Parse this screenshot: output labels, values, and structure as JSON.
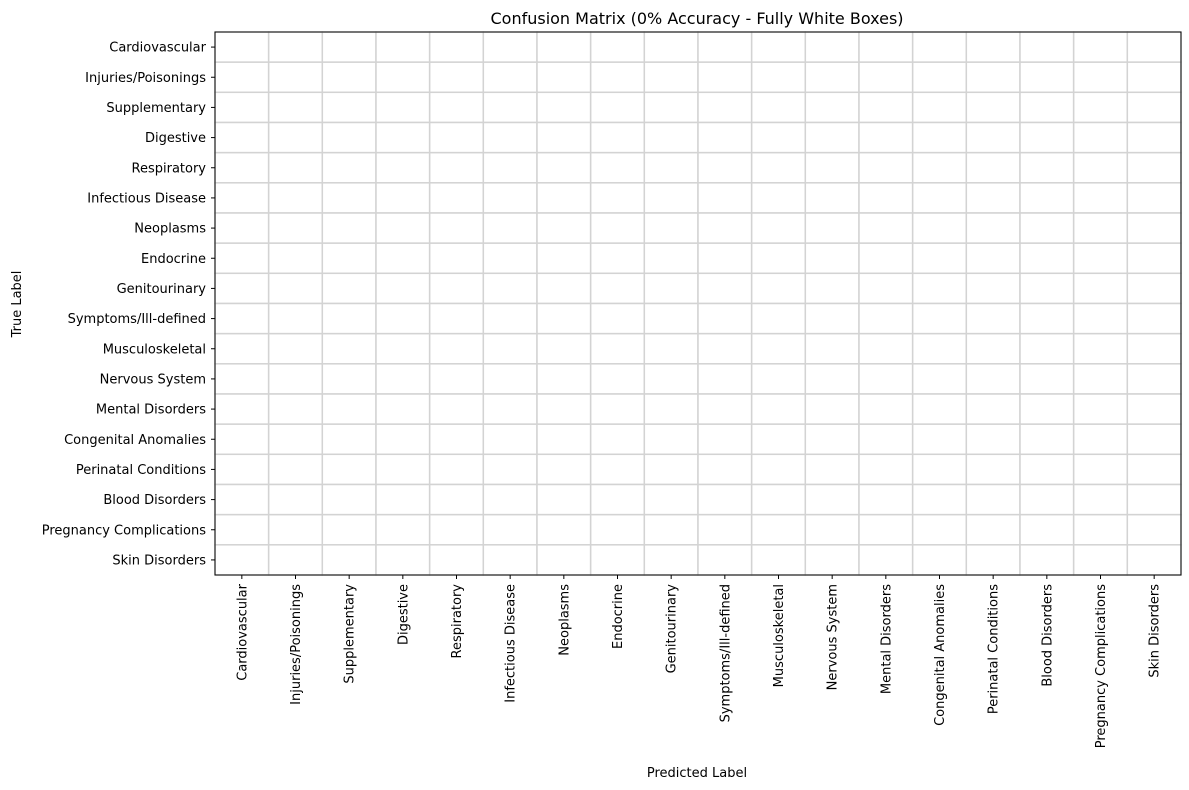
{
  "chart_data": {
    "type": "heatmap",
    "title": "Confusion Matrix (0% Accuracy - Fully White Boxes)",
    "xlabel": "Predicted Label",
    "ylabel": "True Label",
    "x_categories": [
      "Cardiovascular",
      "Injuries/Poisonings",
      "Supplementary",
      "Digestive",
      "Respiratory",
      "Infectious Disease",
      "Neoplasms",
      "Endocrine",
      "Genitourinary",
      "Symptoms/Ill-defined",
      "Musculoskeletal",
      "Nervous System",
      "Mental Disorders",
      "Congenital Anomalies",
      "Perinatal Conditions",
      "Blood Disorders",
      "Pregnancy Complications",
      "Skin Disorders"
    ],
    "y_categories": [
      "Cardiovascular",
      "Injuries/Poisonings",
      "Supplementary",
      "Digestive",
      "Respiratory",
      "Infectious Disease",
      "Neoplasms",
      "Endocrine",
      "Genitourinary",
      "Symptoms/Ill-defined",
      "Musculoskeletal",
      "Nervous System",
      "Mental Disorders",
      "Congenital Anomalies",
      "Perinatal Conditions",
      "Blood Disorders",
      "Pregnancy Complications",
      "Skin Disorders"
    ],
    "values": [
      [
        0,
        0,
        0,
        0,
        0,
        0,
        0,
        0,
        0,
        0,
        0,
        0,
        0,
        0,
        0,
        0,
        0,
        0
      ],
      [
        0,
        0,
        0,
        0,
        0,
        0,
        0,
        0,
        0,
        0,
        0,
        0,
        0,
        0,
        0,
        0,
        0,
        0
      ],
      [
        0,
        0,
        0,
        0,
        0,
        0,
        0,
        0,
        0,
        0,
        0,
        0,
        0,
        0,
        0,
        0,
        0,
        0
      ],
      [
        0,
        0,
        0,
        0,
        0,
        0,
        0,
        0,
        0,
        0,
        0,
        0,
        0,
        0,
        0,
        0,
        0,
        0
      ],
      [
        0,
        0,
        0,
        0,
        0,
        0,
        0,
        0,
        0,
        0,
        0,
        0,
        0,
        0,
        0,
        0,
        0,
        0
      ],
      [
        0,
        0,
        0,
        0,
        0,
        0,
        0,
        0,
        0,
        0,
        0,
        0,
        0,
        0,
        0,
        0,
        0,
        0
      ],
      [
        0,
        0,
        0,
        0,
        0,
        0,
        0,
        0,
        0,
        0,
        0,
        0,
        0,
        0,
        0,
        0,
        0,
        0
      ],
      [
        0,
        0,
        0,
        0,
        0,
        0,
        0,
        0,
        0,
        0,
        0,
        0,
        0,
        0,
        0,
        0,
        0,
        0
      ],
      [
        0,
        0,
        0,
        0,
        0,
        0,
        0,
        0,
        0,
        0,
        0,
        0,
        0,
        0,
        0,
        0,
        0,
        0
      ],
      [
        0,
        0,
        0,
        0,
        0,
        0,
        0,
        0,
        0,
        0,
        0,
        0,
        0,
        0,
        0,
        0,
        0,
        0
      ],
      [
        0,
        0,
        0,
        0,
        0,
        0,
        0,
        0,
        0,
        0,
        0,
        0,
        0,
        0,
        0,
        0,
        0,
        0
      ],
      [
        0,
        0,
        0,
        0,
        0,
        0,
        0,
        0,
        0,
        0,
        0,
        0,
        0,
        0,
        0,
        0,
        0,
        0
      ],
      [
        0,
        0,
        0,
        0,
        0,
        0,
        0,
        0,
        0,
        0,
        0,
        0,
        0,
        0,
        0,
        0,
        0,
        0
      ],
      [
        0,
        0,
        0,
        0,
        0,
        0,
        0,
        0,
        0,
        0,
        0,
        0,
        0,
        0,
        0,
        0,
        0,
        0
      ],
      [
        0,
        0,
        0,
        0,
        0,
        0,
        0,
        0,
        0,
        0,
        0,
        0,
        0,
        0,
        0,
        0,
        0,
        0
      ],
      [
        0,
        0,
        0,
        0,
        0,
        0,
        0,
        0,
        0,
        0,
        0,
        0,
        0,
        0,
        0,
        0,
        0,
        0
      ],
      [
        0,
        0,
        0,
        0,
        0,
        0,
        0,
        0,
        0,
        0,
        0,
        0,
        0,
        0,
        0,
        0,
        0,
        0
      ],
      [
        0,
        0,
        0,
        0,
        0,
        0,
        0,
        0,
        0,
        0,
        0,
        0,
        0,
        0,
        0,
        0,
        0,
        0
      ]
    ],
    "cell_color": "#ffffff",
    "gridline_color": "#d3d3d3",
    "grid": true
  }
}
